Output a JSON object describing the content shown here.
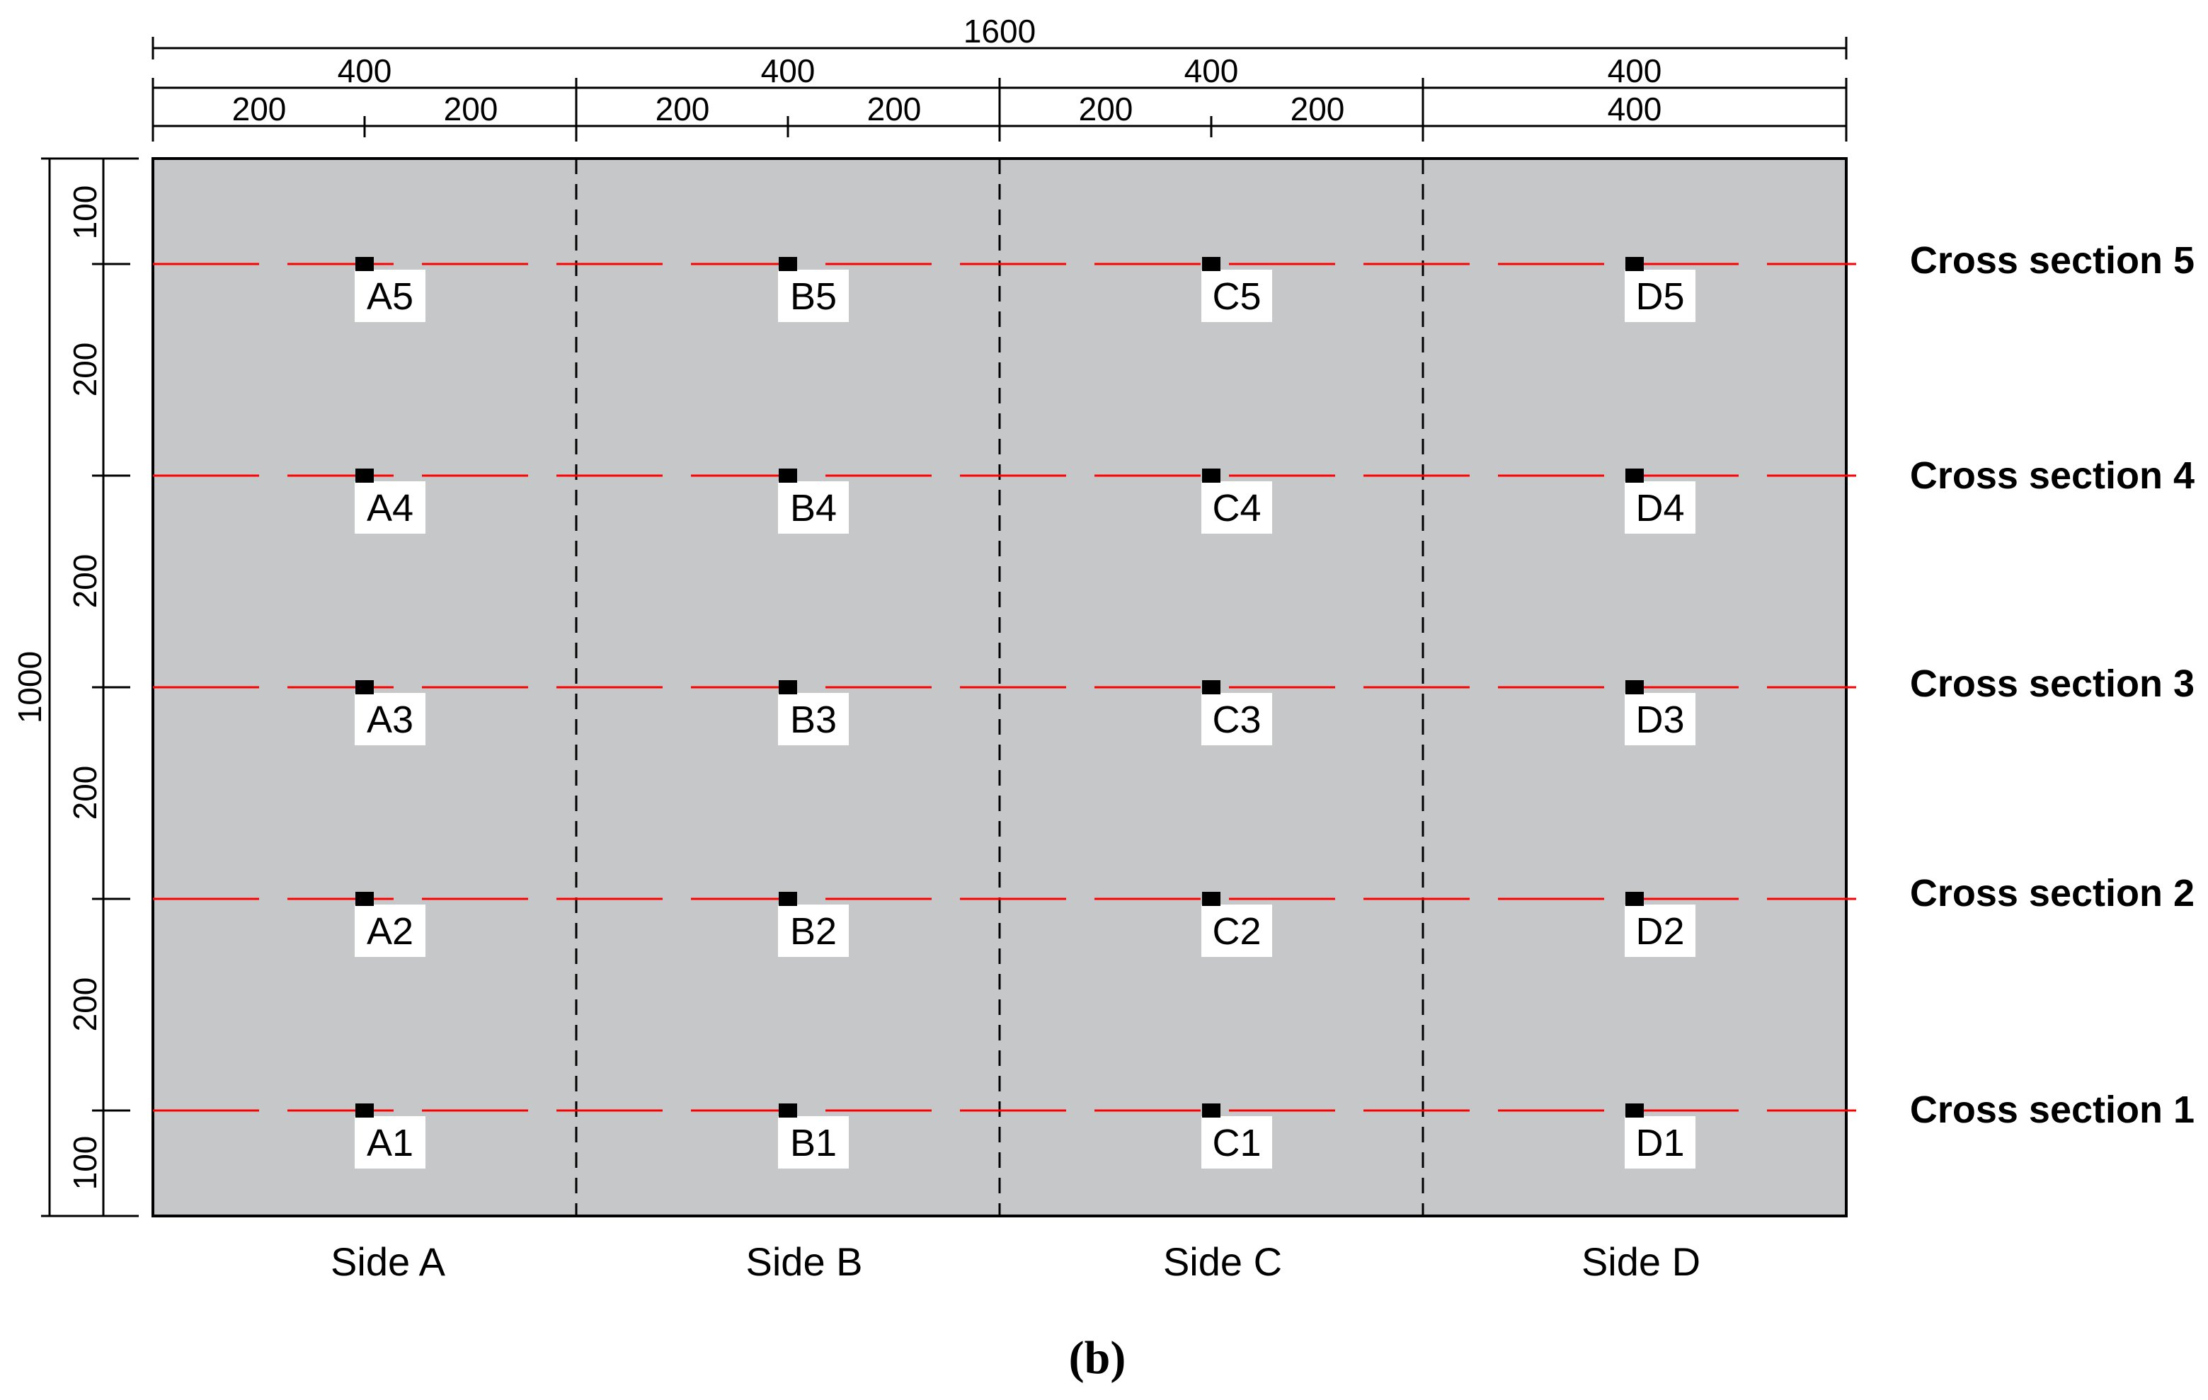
{
  "colors": {
    "panel_fill": "#c6c7c9",
    "measurement_line": "#ff0000",
    "gauge_marker": "#000000",
    "dimension_line": "#000000",
    "label_background": "#ffffff"
  },
  "dimensions": {
    "total_width": "1600",
    "panel_width": "400",
    "half_panel_width": "200",
    "total_height": "1000",
    "edge_spacing": "100",
    "section_spacing": "200"
  },
  "top_dimensions": {
    "overall": "1600",
    "panels": [
      "400",
      "400",
      "400",
      "400"
    ],
    "halves": [
      "200",
      "200",
      "200",
      "200",
      "200",
      "200",
      "400"
    ]
  },
  "left_dimensions": {
    "overall": "1000",
    "segments": [
      "100",
      "200",
      "200",
      "200",
      "200",
      "100"
    ]
  },
  "sides": [
    "Side A",
    "Side B",
    "Side C",
    "Side D"
  ],
  "cross_sections": [
    "Cross section 5",
    "Cross section 4",
    "Cross section 3",
    "Cross section 2",
    "Cross section 1"
  ],
  "points": [
    [
      "A5",
      "B5",
      "C5",
      "D5"
    ],
    [
      "A4",
      "B4",
      "C4",
      "D4"
    ],
    [
      "A3",
      "B3",
      "C3",
      "D3"
    ],
    [
      "A2",
      "B2",
      "C2",
      "D2"
    ],
    [
      "A1",
      "B1",
      "C1",
      "D1"
    ]
  ],
  "caption": "(b)"
}
